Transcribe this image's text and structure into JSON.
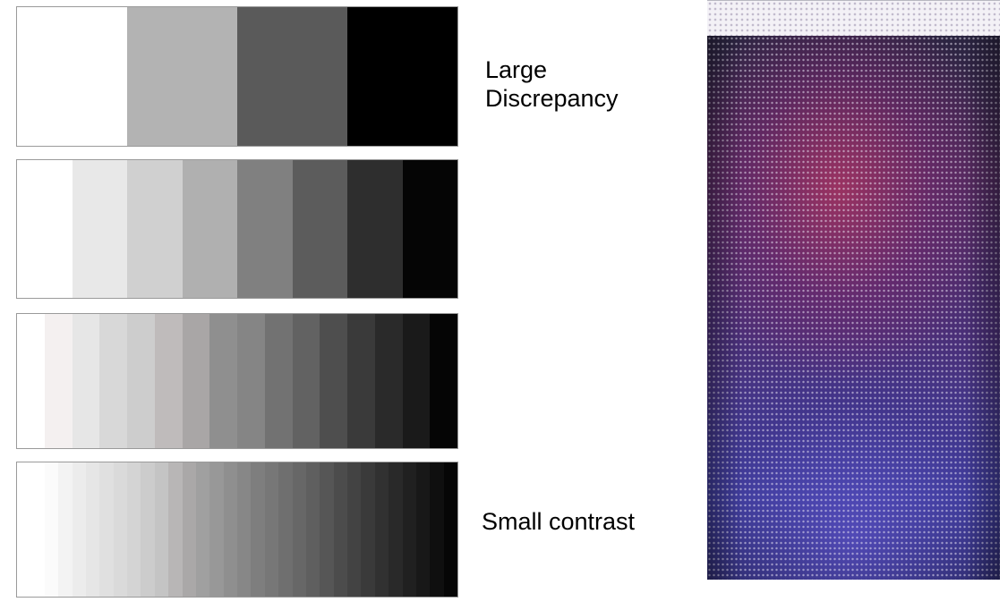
{
  "labels": {
    "large_line1": "Large",
    "large_line2": "Discrepancy",
    "small": "Small contrast"
  },
  "gray_strips": [
    {
      "steps": 4,
      "colors": [
        "#ffffff",
        "#b3b3b3",
        "#5a5a5a",
        "#000000"
      ]
    },
    {
      "steps": 8,
      "colors": [
        "#ffffff",
        "#e8e8e8",
        "#d0d0d0",
        "#b0b0b0",
        "#808080",
        "#5c5c5c",
        "#2e2e2e",
        "#050505"
      ]
    },
    {
      "steps": 16,
      "colors": [
        "#ffffff",
        "#f4f0f0",
        "#e6e6e6",
        "#d8d8d8",
        "#cdcdcd",
        "#bfbbbb",
        "#a9a6a6",
        "#8f8f8f",
        "#858585",
        "#727272",
        "#626262",
        "#4e4e4e",
        "#3a3a3a",
        "#2a2a2a",
        "#1a1a1a",
        "#050505"
      ]
    },
    {
      "steps": 32,
      "colors": [
        "#ffffff",
        "#ffffff",
        "#fbfbfb",
        "#f3f3f3",
        "#ececec",
        "#e6e6e6",
        "#e0e0e0",
        "#dadada",
        "#d4d4d4",
        "#cccccc",
        "#c4c4c4",
        "#b8b6b6",
        "#aaa8a8",
        "#a0a0a0",
        "#989898",
        "#8f8f8f",
        "#878787",
        "#7e7e7e",
        "#777777",
        "#6f6f6f",
        "#676767",
        "#5f5f5f",
        "#565656",
        "#4c4c4c",
        "#434343",
        "#3a3a3a",
        "#313131",
        "#292929",
        "#202020",
        "#181818",
        "#0f0f0f",
        "#060606"
      ]
    }
  ]
}
